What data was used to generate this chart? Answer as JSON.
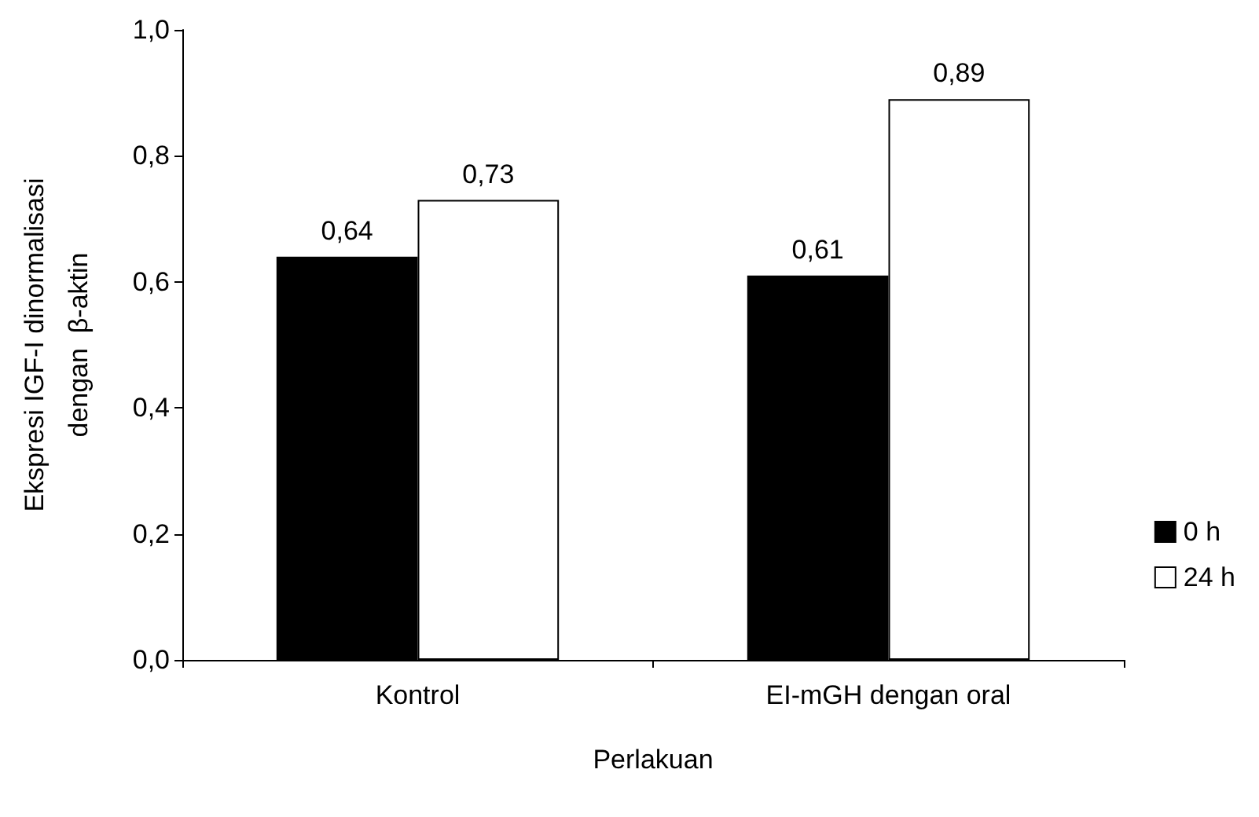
{
  "chart_data": {
    "type": "bar",
    "xlabel": "Perlakuan",
    "ylabel": "Ekspresi IGF-I dinormalisasi\ndengan  β-aktin",
    "categories": [
      "Kontrol",
      "EI-mGH dengan oral"
    ],
    "series": [
      {
        "name": "0 h",
        "color": "#000000",
        "values": [
          0.64,
          0.61
        ],
        "value_labels": [
          "0,64",
          "0,61"
        ]
      },
      {
        "name": "24 h",
        "color": "#ffffff",
        "values": [
          0.73,
          0.89
        ],
        "value_labels": [
          "0,73",
          "0,89"
        ]
      }
    ],
    "ylim": [
      0,
      1
    ],
    "yticks": [
      {
        "value": 0,
        "label": "0,0"
      },
      {
        "value": 0.2,
        "label": "0,2"
      },
      {
        "value": 0.4,
        "label": "0,4"
      },
      {
        "value": 0.6,
        "label": "0,6"
      },
      {
        "value": 0.8,
        "label": "0,8"
      },
      {
        "value": 1,
        "label": "1,0"
      }
    ],
    "grid": false,
    "legend": "right"
  }
}
